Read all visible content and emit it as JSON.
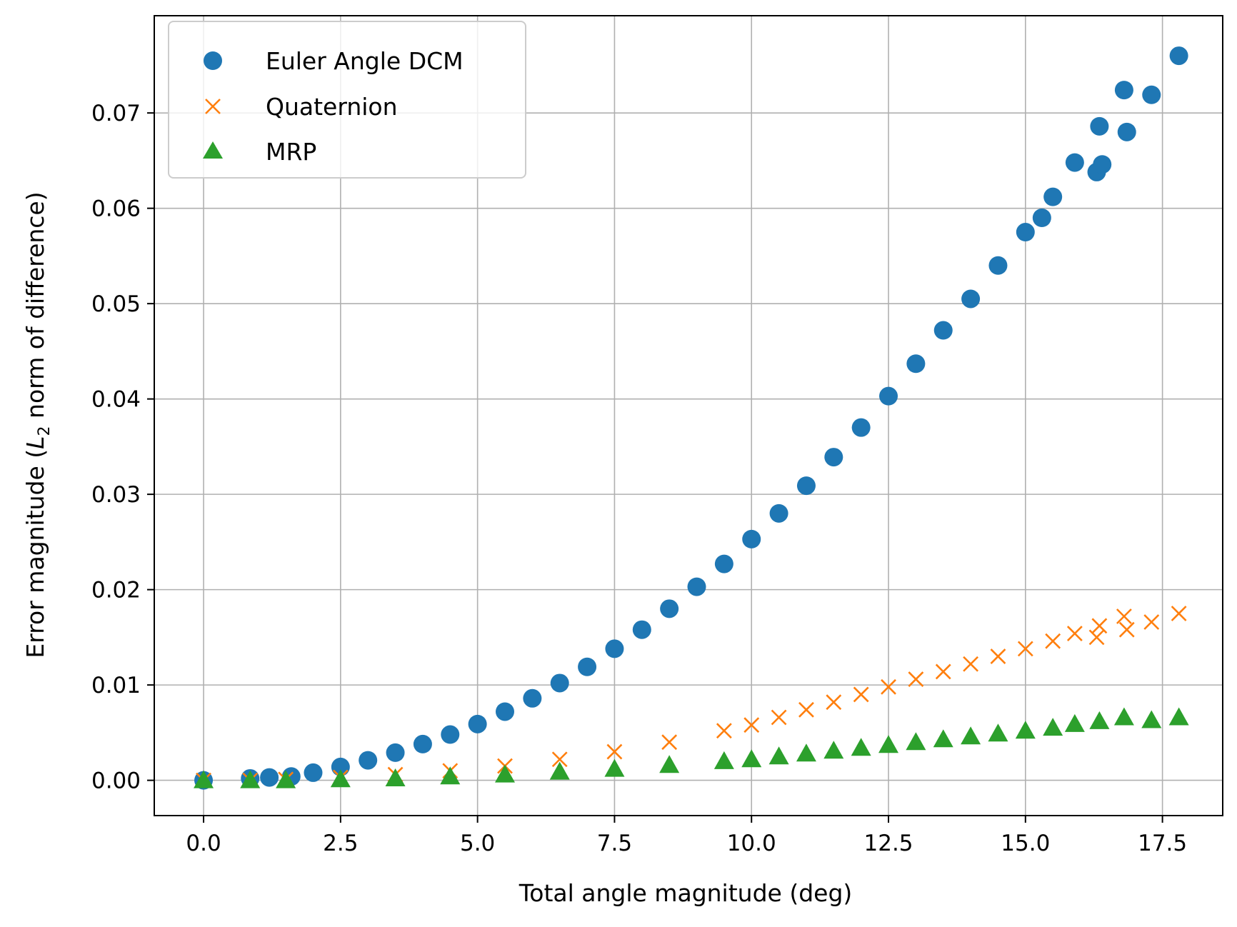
{
  "colors": {
    "euler": "#1f77b4",
    "quaternion": "#ff7f0e",
    "mrp": "#2ca02c",
    "grid": "#b0b0b0",
    "axis": "#000000"
  },
  "chart_data": {
    "type": "scatter",
    "xlabel": "Total angle magnitude (deg)",
    "ylabel_parts": [
      "Error magnitude (",
      "L",
      "2",
      " norm of difference)"
    ],
    "xlim": [
      -0.9,
      18.6
    ],
    "ylim": [
      -0.0037,
      0.0802
    ],
    "x_ticks": [
      0.0,
      2.5,
      5.0,
      7.5,
      10.0,
      12.5,
      15.0,
      17.5
    ],
    "x_tick_labels": [
      "0.0",
      "2.5",
      "5.0",
      "7.5",
      "10.0",
      "12.5",
      "15.0",
      "17.5"
    ],
    "y_ticks": [
      0.0,
      0.01,
      0.02,
      0.03,
      0.04,
      0.05,
      0.06,
      0.07
    ],
    "y_tick_labels": [
      "0.00",
      "0.01",
      "0.02",
      "0.03",
      "0.04",
      "0.05",
      "0.06",
      "0.07"
    ],
    "grid": true,
    "legend_position": "top-left",
    "series": [
      {
        "name": "Euler Angle DCM",
        "marker": "circle",
        "color": "#1f77b4",
        "points": [
          [
            0.0,
            0.0
          ],
          [
            0.85,
            0.0002
          ],
          [
            1.2,
            0.0003
          ],
          [
            1.6,
            0.0004
          ],
          [
            2.0,
            0.0008
          ],
          [
            2.5,
            0.0014
          ],
          [
            3.0,
            0.0021
          ],
          [
            3.5,
            0.0029
          ],
          [
            4.0,
            0.0038
          ],
          [
            4.5,
            0.0048
          ],
          [
            5.0,
            0.0059
          ],
          [
            5.5,
            0.0072
          ],
          [
            6.0,
            0.0086
          ],
          [
            6.5,
            0.0102
          ],
          [
            7.0,
            0.0119
          ],
          [
            7.5,
            0.0138
          ],
          [
            8.0,
            0.0158
          ],
          [
            8.5,
            0.018
          ],
          [
            9.0,
            0.0203
          ],
          [
            9.5,
            0.0227
          ],
          [
            10.0,
            0.0253
          ],
          [
            10.5,
            0.028
          ],
          [
            11.0,
            0.0309
          ],
          [
            11.5,
            0.0339
          ],
          [
            12.0,
            0.037
          ],
          [
            12.5,
            0.0403
          ],
          [
            13.0,
            0.0437
          ],
          [
            13.5,
            0.0472
          ],
          [
            14.0,
            0.0505
          ],
          [
            14.5,
            0.054
          ],
          [
            15.0,
            0.0575
          ],
          [
            15.3,
            0.059
          ],
          [
            15.5,
            0.0612
          ],
          [
            15.9,
            0.0648
          ],
          [
            16.3,
            0.0638
          ],
          [
            16.35,
            0.0686
          ],
          [
            16.4,
            0.0646
          ],
          [
            16.8,
            0.0724
          ],
          [
            16.85,
            0.068
          ],
          [
            17.3,
            0.0719
          ],
          [
            17.8,
            0.076
          ]
        ]
      },
      {
        "name": "Quaternion",
        "marker": "x",
        "color": "#ff7f0e",
        "points": [
          [
            0.0,
            0.0
          ],
          [
            0.85,
            0.0
          ],
          [
            1.5,
            0.0001
          ],
          [
            2.5,
            0.0003
          ],
          [
            3.5,
            0.0006
          ],
          [
            4.5,
            0.001
          ],
          [
            5.5,
            0.0015
          ],
          [
            6.5,
            0.0022
          ],
          [
            7.5,
            0.003
          ],
          [
            8.5,
            0.004
          ],
          [
            9.5,
            0.0052
          ],
          [
            10.0,
            0.0058
          ],
          [
            10.5,
            0.0066
          ],
          [
            11.0,
            0.0074
          ],
          [
            11.5,
            0.0082
          ],
          [
            12.0,
            0.009
          ],
          [
            12.5,
            0.0098
          ],
          [
            13.0,
            0.0106
          ],
          [
            13.5,
            0.0114
          ],
          [
            14.0,
            0.0122
          ],
          [
            14.5,
            0.013
          ],
          [
            15.0,
            0.0138
          ],
          [
            15.5,
            0.0146
          ],
          [
            15.9,
            0.0154
          ],
          [
            16.3,
            0.015
          ],
          [
            16.35,
            0.0162
          ],
          [
            16.8,
            0.0172
          ],
          [
            16.85,
            0.0158
          ],
          [
            17.3,
            0.0166
          ],
          [
            17.8,
            0.0175
          ]
        ]
      },
      {
        "name": "MRP",
        "marker": "triangle",
        "color": "#2ca02c",
        "points": [
          [
            0.0,
            0.0
          ],
          [
            0.85,
            0.0
          ],
          [
            1.5,
            0.0
          ],
          [
            2.5,
            0.0001
          ],
          [
            3.5,
            0.0002
          ],
          [
            4.5,
            0.0004
          ],
          [
            5.5,
            0.0006
          ],
          [
            6.5,
            0.0009
          ],
          [
            7.5,
            0.0012
          ],
          [
            8.5,
            0.0016
          ],
          [
            9.5,
            0.002
          ],
          [
            10.0,
            0.0022
          ],
          [
            10.5,
            0.0025
          ],
          [
            11.0,
            0.0028
          ],
          [
            11.5,
            0.0031
          ],
          [
            12.0,
            0.0034
          ],
          [
            12.5,
            0.0037
          ],
          [
            13.0,
            0.004
          ],
          [
            13.5,
            0.0043
          ],
          [
            14.0,
            0.0046
          ],
          [
            14.5,
            0.0049
          ],
          [
            15.0,
            0.0052
          ],
          [
            15.5,
            0.0055
          ],
          [
            15.9,
            0.0059
          ],
          [
            16.35,
            0.0062
          ],
          [
            16.8,
            0.0066
          ],
          [
            17.3,
            0.0063
          ],
          [
            17.8,
            0.0066
          ]
        ]
      }
    ]
  }
}
